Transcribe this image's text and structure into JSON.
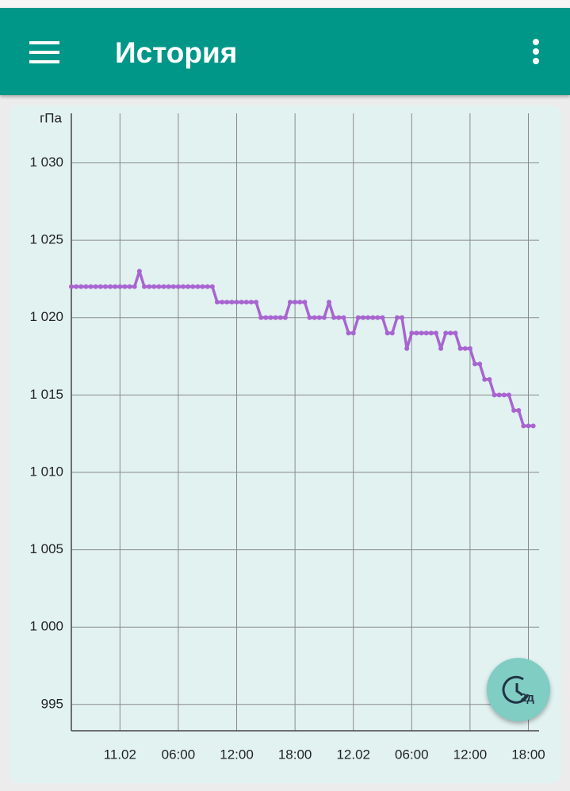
{
  "app_bar": {
    "title": "История"
  },
  "chart_data": {
    "type": "line",
    "y_label": "гПа",
    "x": [
      "10.02 19:00",
      "10.02 19:30",
      "10.02 20:00",
      "10.02 20:30",
      "10.02 21:00",
      "10.02 21:30",
      "10.02 22:00",
      "10.02 22:30",
      "10.02 23:00",
      "10.02 23:30",
      "11.02 00:00",
      "11.02 00:30",
      "11.02 01:00",
      "11.02 01:30",
      "11.02 02:00",
      "11.02 02:30",
      "11.02 03:00",
      "11.02 03:30",
      "11.02 04:00",
      "11.02 04:30",
      "11.02 05:00",
      "11.02 05:30",
      "11.02 06:00",
      "11.02 06:30",
      "11.02 07:00",
      "11.02 07:30",
      "11.02 08:00",
      "11.02 08:30",
      "11.02 09:00",
      "11.02 09:30",
      "11.02 10:00",
      "11.02 10:30",
      "11.02 11:00",
      "11.02 11:30",
      "11.02 12:00",
      "11.02 12:30",
      "11.02 13:00",
      "11.02 13:30",
      "11.02 14:00",
      "11.02 14:30",
      "11.02 15:00",
      "11.02 15:30",
      "11.02 16:00",
      "11.02 16:30",
      "11.02 17:00",
      "11.02 17:30",
      "11.02 18:00",
      "11.02 18:30",
      "11.02 19:00",
      "11.02 19:30",
      "11.02 20:00",
      "11.02 20:30",
      "11.02 21:00",
      "11.02 21:30",
      "11.02 22:00",
      "11.02 22:30",
      "11.02 23:00",
      "11.02 23:30",
      "12.02 00:00",
      "12.02 00:30",
      "12.02 01:00",
      "12.02 01:30",
      "12.02 02:00",
      "12.02 02:30",
      "12.02 03:00",
      "12.02 03:30",
      "12.02 04:00",
      "12.02 04:30",
      "12.02 05:00",
      "12.02 05:30",
      "12.02 06:00",
      "12.02 06:30",
      "12.02 07:00",
      "12.02 07:30",
      "12.02 08:00",
      "12.02 08:30",
      "12.02 09:00",
      "12.02 09:30",
      "12.02 10:00",
      "12.02 10:30",
      "12.02 11:00",
      "12.02 11:30",
      "12.02 12:00",
      "12.02 12:30",
      "12.02 13:00",
      "12.02 13:30",
      "12.02 14:00",
      "12.02 14:30",
      "12.02 15:00",
      "12.02 15:30",
      "12.02 16:00",
      "12.02 16:30",
      "12.02 17:00",
      "12.02 17:30",
      "12.02 18:00",
      "12.02 18:30"
    ],
    "series": [
      {
        "color": "#a864d0",
        "values": [
          1022,
          1022,
          1022,
          1022,
          1022,
          1022,
          1022,
          1022,
          1022,
          1022,
          1022,
          1022,
          1022,
          1022,
          1023,
          1022,
          1022,
          1022,
          1022,
          1022,
          1022,
          1022,
          1022,
          1022,
          1022,
          1022,
          1022,
          1022,
          1022,
          1022,
          1021,
          1021,
          1021,
          1021,
          1021,
          1021,
          1021,
          1021,
          1021,
          1020,
          1020,
          1020,
          1020,
          1020,
          1020,
          1021,
          1021,
          1021,
          1021,
          1020,
          1020,
          1020,
          1020,
          1021,
          1020,
          1020,
          1020,
          1019,
          1019,
          1020,
          1020,
          1020,
          1020,
          1020,
          1020,
          1019,
          1019,
          1020,
          1020,
          1018,
          1019,
          1019,
          1019,
          1019,
          1019,
          1019,
          1018,
          1019,
          1019,
          1019,
          1018,
          1018,
          1018,
          1017,
          1017,
          1016,
          1016,
          1015,
          1015,
          1015,
          1015,
          1014,
          1014,
          1013,
          1013,
          1013
        ]
      }
    ],
    "xlim": [
      "10.02 19:00",
      "12.02 19:06"
    ],
    "ylim": [
      993.3,
      1033.2
    ],
    "xticks": [
      {
        "value": "11.02 00:00",
        "label": "11.02"
      },
      {
        "value": "11.02 06:00",
        "label": "06:00"
      },
      {
        "value": "11.02 12:00",
        "label": "12:00"
      },
      {
        "value": "11.02 18:00",
        "label": "18:00"
      },
      {
        "value": "12.02 00:00",
        "label": "12.02"
      },
      {
        "value": "12.02 06:00",
        "label": "06:00"
      },
      {
        "value": "12.02 12:00",
        "label": "12:00"
      },
      {
        "value": "12.02 18:00",
        "label": "18:00"
      }
    ],
    "yticks": [
      995,
      {
        "value": 1000,
        "label": "1 000"
      },
      {
        "value": 1005,
        "label": "1 005"
      },
      {
        "value": 1010,
        "label": "1 010"
      },
      {
        "value": 1015,
        "label": "1 015"
      },
      {
        "value": 1020,
        "label": "1 020"
      },
      {
        "value": 1025,
        "label": "1 025"
      },
      {
        "value": 1030,
        "label": "1 030"
      }
    ],
    "grid": true
  },
  "fab": {
    "label": "2д"
  }
}
